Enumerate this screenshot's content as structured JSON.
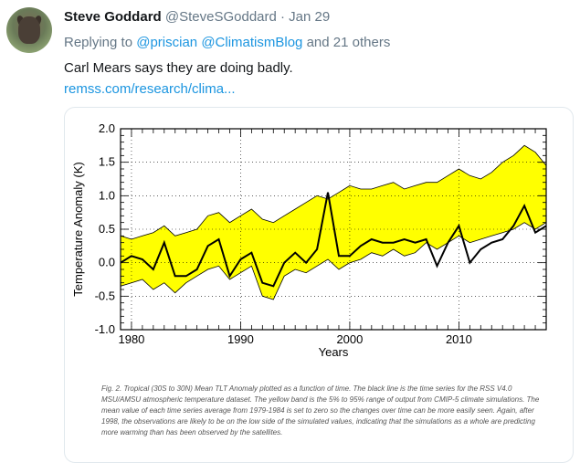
{
  "tweet": {
    "author_name": "Steve Goddard",
    "handle": "@SteveSGoddard",
    "date": "· Jan 29",
    "replying_prefix": "Replying to",
    "mention1": "@priscian",
    "mention2": "@ClimatismBlog",
    "replying_suffix": "and 21 others",
    "text": "Carl Mears says they are doing badly.",
    "link": "remss.com/research/clima..."
  },
  "figure": {
    "caption": "Fig. 2. Tropical (30S to 30N) Mean TLT Anomaly plotted as a function of time. The black line is the time series for the RSS V4.0 MSU/AMSU atmospheric temperature dataset. The yellow band is the 5% to 95% range of output from CMIP-5 climate simulations. The mean value of each time series average from 1979-1984 is set to zero so the changes over time can be more easily seen. Again, after 1998, the observations are likely to be on the low side of the simulated values, indicating that the simulations as a whole are predicting more warming than has been observed by the satellites."
  },
  "chart_data": {
    "type": "line",
    "title": "",
    "xlabel": "Years",
    "ylabel": "Temperature Anomaly (K)",
    "xlim": [
      1979,
      2018
    ],
    "ylim": [
      -1.0,
      2.0
    ],
    "xticks": [
      "1980",
      "1990",
      "2000",
      "2010"
    ],
    "yticks": [
      "-1.0",
      "-0.5",
      "0.0",
      "0.5",
      "1.0",
      "1.5",
      "2.0"
    ],
    "colors": {
      "band": "#ffff00",
      "observed": "#000000"
    },
    "series": [
      {
        "role": "band-upper",
        "x": [
          1979,
          1980,
          1981,
          1982,
          1983,
          1984,
          1985,
          1986,
          1987,
          1988,
          1989,
          1990,
          1991,
          1992,
          1993,
          1994,
          1995,
          1996,
          1997,
          1998,
          1999,
          2000,
          2001,
          2002,
          2003,
          2004,
          2005,
          2006,
          2007,
          2008,
          2009,
          2010,
          2011,
          2012,
          2013,
          2014,
          2015,
          2016,
          2017,
          2018
        ],
        "values": [
          0.4,
          0.35,
          0.4,
          0.45,
          0.55,
          0.4,
          0.45,
          0.5,
          0.7,
          0.75,
          0.6,
          0.7,
          0.8,
          0.65,
          0.6,
          0.7,
          0.8,
          0.9,
          1.0,
          0.95,
          1.05,
          1.15,
          1.1,
          1.1,
          1.15,
          1.2,
          1.1,
          1.15,
          1.2,
          1.2,
          1.3,
          1.4,
          1.3,
          1.25,
          1.35,
          1.5,
          1.6,
          1.75,
          1.65,
          1.45
        ]
      },
      {
        "role": "band-lower",
        "x": [
          1979,
          1980,
          1981,
          1982,
          1983,
          1984,
          1985,
          1986,
          1987,
          1988,
          1989,
          1990,
          1991,
          1992,
          1993,
          1994,
          1995,
          1996,
          1997,
          1998,
          1999,
          2000,
          2001,
          2002,
          2003,
          2004,
          2005,
          2006,
          2007,
          2008,
          2009,
          2010,
          2011,
          2012,
          2013,
          2014,
          2015,
          2016,
          2017,
          2018
        ],
        "values": [
          -0.35,
          -0.3,
          -0.25,
          -0.4,
          -0.3,
          -0.45,
          -0.3,
          -0.2,
          -0.1,
          -0.05,
          -0.25,
          -0.15,
          -0.05,
          -0.5,
          -0.55,
          -0.2,
          -0.1,
          -0.15,
          -0.05,
          0.05,
          -0.1,
          0.0,
          0.05,
          0.15,
          0.1,
          0.2,
          0.1,
          0.15,
          0.3,
          0.2,
          0.3,
          0.4,
          0.3,
          0.35,
          0.4,
          0.45,
          0.5,
          0.6,
          0.5,
          0.6
        ]
      },
      {
        "role": "observed",
        "x": [
          1979,
          1980,
          1981,
          1982,
          1983,
          1984,
          1985,
          1986,
          1987,
          1988,
          1989,
          1990,
          1991,
          1992,
          1993,
          1994,
          1995,
          1996,
          1997,
          1998,
          1999,
          2000,
          2001,
          2002,
          2003,
          2004,
          2005,
          2006,
          2007,
          2008,
          2009,
          2010,
          2011,
          2012,
          2013,
          2014,
          2015,
          2016,
          2017,
          2018
        ],
        "values": [
          0.0,
          0.1,
          0.05,
          -0.1,
          0.3,
          -0.2,
          -0.2,
          -0.1,
          0.25,
          0.35,
          -0.2,
          0.05,
          0.15,
          -0.3,
          -0.35,
          0.0,
          0.15,
          0.0,
          0.2,
          1.05,
          0.1,
          0.1,
          0.25,
          0.35,
          0.3,
          0.3,
          0.35,
          0.3,
          0.35,
          -0.05,
          0.3,
          0.55,
          0.0,
          0.2,
          0.3,
          0.35,
          0.55,
          0.85,
          0.45,
          0.55
        ]
      }
    ]
  }
}
